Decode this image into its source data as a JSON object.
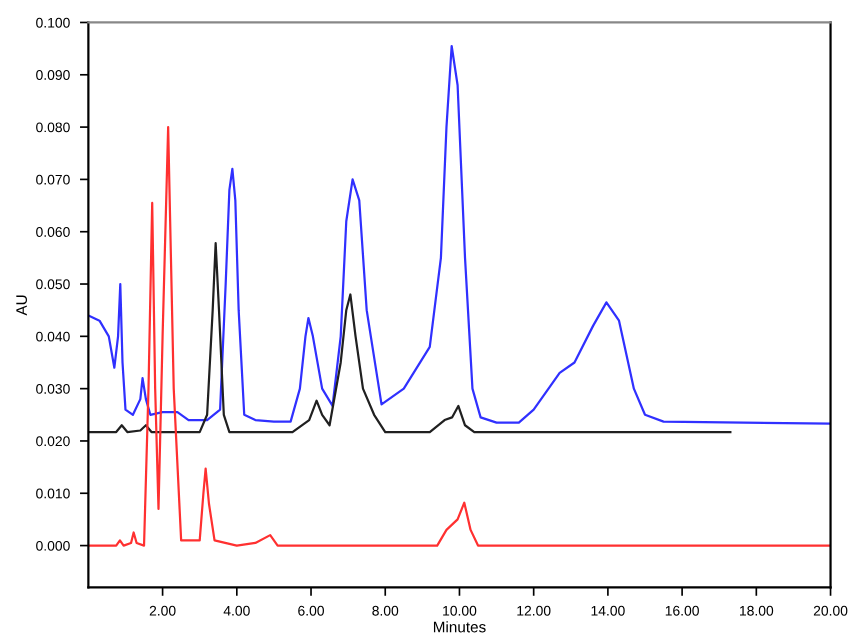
{
  "chart_data": {
    "type": "line",
    "xlabel": "Minutes",
    "ylabel": "AU",
    "xlim": [
      0,
      20
    ],
    "ylim": [
      -0.008,
      0.1
    ],
    "xticks": [
      {
        "value": 2,
        "label": "2.00"
      },
      {
        "value": 4,
        "label": "4.00"
      },
      {
        "value": 6,
        "label": "6.00"
      },
      {
        "value": 8,
        "label": "8.00"
      },
      {
        "value": 10,
        "label": "10.00"
      },
      {
        "value": 12,
        "label": "12.00"
      },
      {
        "value": 14,
        "label": "14.00"
      },
      {
        "value": 16,
        "label": "16.00"
      },
      {
        "value": 18,
        "label": "18.00"
      },
      {
        "value": 20,
        "label": "20.00"
      }
    ],
    "yticks": [
      {
        "value": 0,
        "label": "0.000"
      },
      {
        "value": 0.01,
        "label": "0.010"
      },
      {
        "value": 0.02,
        "label": "0.020"
      },
      {
        "value": 0.03,
        "label": "0.030"
      },
      {
        "value": 0.04,
        "label": "0.040"
      },
      {
        "value": 0.05,
        "label": "0.050"
      },
      {
        "value": 0.06,
        "label": "0.060"
      },
      {
        "value": 0.07,
        "label": "0.070"
      },
      {
        "value": 0.08,
        "label": "0.080"
      },
      {
        "value": 0.09,
        "label": "0.090"
      },
      {
        "value": 0.1,
        "label": "0.100"
      }
    ],
    "grid": false,
    "marker": "none",
    "line_style": "solid",
    "series": [
      {
        "color": "#3030ff",
        "x": [
          0,
          0.3,
          0.55,
          0.7,
          0.8,
          0.86,
          0.92,
          1.0,
          1.2,
          1.4,
          1.46,
          1.55,
          1.67,
          2.0,
          2.4,
          2.7,
          3.2,
          3.55,
          3.7,
          3.8,
          3.88,
          3.96,
          4.05,
          4.2,
          4.5,
          5.0,
          5.45,
          5.7,
          5.85,
          5.93,
          6.05,
          6.3,
          6.58,
          6.8,
          6.95,
          7.12,
          7.3,
          7.5,
          7.9,
          8.5,
          9.2,
          9.5,
          9.65,
          9.79,
          9.95,
          10.15,
          10.35,
          10.57,
          11.0,
          11.6,
          12.0,
          12.7,
          13.1,
          13.6,
          13.96,
          14.3,
          14.7,
          15.0,
          15.5,
          20
        ],
        "values": [
          0.044,
          0.043,
          0.04,
          0.034,
          0.04,
          0.05,
          0.035,
          0.026,
          0.025,
          0.028,
          0.032,
          0.028,
          0.025,
          0.0255,
          0.0255,
          0.024,
          0.024,
          0.026,
          0.05,
          0.068,
          0.072,
          0.066,
          0.045,
          0.025,
          0.024,
          0.0237,
          0.0237,
          0.03,
          0.04,
          0.0435,
          0.04,
          0.03,
          0.0267,
          0.04,
          0.062,
          0.07,
          0.066,
          0.045,
          0.027,
          0.03,
          0.038,
          0.055,
          0.08,
          0.0955,
          0.088,
          0.055,
          0.03,
          0.0245,
          0.0235,
          0.0235,
          0.026,
          0.033,
          0.035,
          0.042,
          0.0465,
          0.043,
          0.03,
          0.025,
          0.0237,
          0.0233
        ]
      },
      {
        "color": "#202020",
        "x": [
          0,
          0.75,
          0.9,
          1.05,
          1.4,
          1.55,
          1.7,
          3.0,
          3.2,
          3.35,
          3.43,
          3.52,
          3.65,
          3.8,
          5.5,
          5.95,
          6.15,
          6.3,
          6.5,
          6.8,
          6.95,
          7.06,
          7.2,
          7.4,
          7.7,
          8.0,
          9.2,
          9.6,
          9.8,
          9.97,
          10.15,
          10.4,
          17.3
        ],
        "values": [
          0.0217,
          0.0217,
          0.023,
          0.0217,
          0.022,
          0.023,
          0.0217,
          0.0217,
          0.025,
          0.045,
          0.0578,
          0.045,
          0.025,
          0.0217,
          0.0217,
          0.024,
          0.0277,
          0.025,
          0.023,
          0.035,
          0.045,
          0.048,
          0.04,
          0.03,
          0.025,
          0.0217,
          0.0217,
          0.024,
          0.0245,
          0.0267,
          0.023,
          0.0217,
          0.0217
        ]
      },
      {
        "color": "#ff3030",
        "x": [
          0,
          0.75,
          0.85,
          0.95,
          1.15,
          1.22,
          1.3,
          1.5,
          1.62,
          1.72,
          1.8,
          1.89,
          2.0,
          2.15,
          2.3,
          2.5,
          3.0,
          3.1,
          3.16,
          3.25,
          3.4,
          4.0,
          4.5,
          4.9,
          5.1,
          9.4,
          9.65,
          9.8,
          9.95,
          10.13,
          10.3,
          10.5,
          20
        ],
        "values": [
          0,
          0,
          0.001,
          0,
          0.0005,
          0.0025,
          0.0005,
          0,
          0.03,
          0.0655,
          0.03,
          0.007,
          0.04,
          0.08,
          0.03,
          0.001,
          0.001,
          0.01,
          0.0147,
          0.008,
          0.001,
          0,
          0.0005,
          0.002,
          0,
          0,
          0.003,
          0.004,
          0.005,
          0.0082,
          0.003,
          0,
          0
        ]
      }
    ]
  }
}
